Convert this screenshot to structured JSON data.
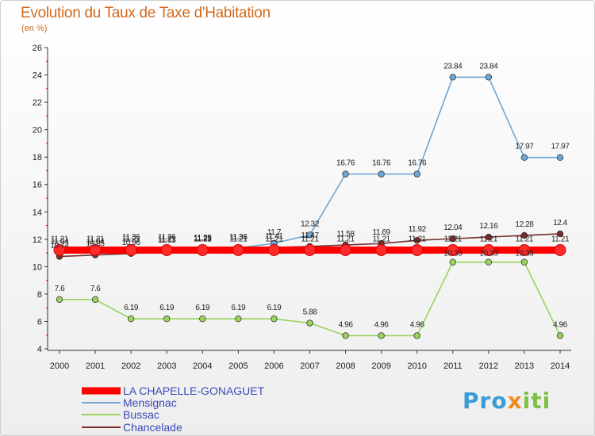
{
  "chart_data": {
    "type": "line",
    "title": "Evolution du Taux de Taxe d'Habitation",
    "subtitle": "(en %)",
    "x": [
      "2000",
      "2001",
      "2002",
      "2003",
      "2004",
      "2005",
      "2006",
      "2007",
      "2008",
      "2009",
      "2010",
      "2011",
      "2012",
      "2013",
      "2014"
    ],
    "ylim": [
      4,
      26
    ],
    "yticks": [
      4,
      6,
      8,
      10,
      12,
      14,
      16,
      18,
      20,
      22,
      24,
      26
    ],
    "grid": false,
    "legend_position": "bottom-left",
    "series": [
      {
        "name": "LA CHAPELLE-GONAGUET",
        "color": "#ff0000",
        "values": [
          11.21,
          11.21,
          11.21,
          11.21,
          11.21,
          11.21,
          11.21,
          11.21,
          11.21,
          11.21,
          11.21,
          11.21,
          11.21,
          11.21,
          11.21
        ],
        "labels": [
          "11.21",
          "11.21",
          "11.21",
          "11.21",
          "11.21",
          "11.21",
          "11.21",
          "11.21",
          "11.21",
          "11.21",
          "11.21",
          "11.21",
          "11.21",
          "11.21",
          "11.21"
        ]
      },
      {
        "name": "Mensignac",
        "color": "#6ea6d6",
        "values": [
          11.04,
          11.04,
          11.36,
          11.36,
          11.29,
          11.36,
          11.7,
          12.32,
          16.76,
          16.76,
          16.76,
          23.84,
          23.84,
          17.97,
          17.97
        ],
        "labels": [
          "11.04",
          "11.04",
          "11.36",
          "11.36",
          "11.29",
          "11.36",
          "11.7",
          "12.32",
          "16.76",
          "16.76",
          "16.76",
          "23.84",
          "23.84",
          "17.97",
          "17.97"
        ]
      },
      {
        "name": "Bussac",
        "color": "#9ad35e",
        "values": [
          7.6,
          7.6,
          6.19,
          6.19,
          6.19,
          6.19,
          6.19,
          5.88,
          4.96,
          4.96,
          4.96,
          10.33,
          10.33,
          10.33,
          4.96
        ],
        "labels": [
          "7.6",
          "7.6",
          "6.19",
          "6.19",
          "6.19",
          "6.19",
          "6.19",
          "5.88",
          "4.96",
          "4.96",
          "4.96",
          "10.33",
          "10.33",
          "10.33",
          "4.96"
        ]
      },
      {
        "name": "Chancelade",
        "color": "#7a2c2c",
        "values": [
          10.74,
          10.85,
          10.96,
          11.13,
          11.25,
          11.36,
          11.41,
          11.47,
          11.58,
          11.69,
          11.92,
          12.04,
          12.16,
          12.28,
          12.4
        ],
        "labels": [
          "10.74",
          "10.85",
          "10.96",
          "11.13",
          "11.25",
          "11.36",
          "11.41",
          "11.47",
          "11.58",
          "11.69",
          "11.92",
          "12.04",
          "12.16",
          "12.28",
          "12.4"
        ]
      }
    ]
  },
  "logo": {
    "p1": "Pro",
    "p2": "x",
    "p3": "iti"
  }
}
